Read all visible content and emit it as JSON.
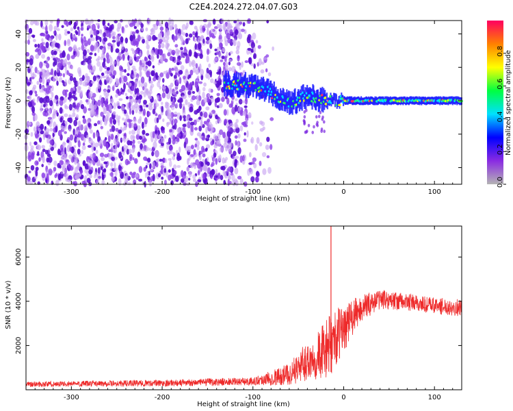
{
  "title": "C2E4.2024.272.04.07.G03",
  "colors": {
    "snr_line": "#ee2a2a",
    "spectro_point": "#6a1bd6",
    "colormap": [
      "#b4b4b4",
      "#8a2be2",
      "#0000ff",
      "#00e0ff",
      "#00ff40",
      "#ffff00",
      "#ff8000",
      "#ff0060"
    ]
  },
  "chart_data": [
    {
      "type": "heatmap",
      "xlabel": "Height of straight line (km)",
      "ylabel": "Frequency (Hz)",
      "xlim": [
        -350,
        130
      ],
      "ylim": [
        -50,
        48
      ],
      "xticks": [
        -300,
        -200,
        -100,
        0,
        100
      ],
      "yticks": [
        -40,
        -20,
        0,
        20,
        40
      ],
      "colorbar": {
        "label": "Normalized spectral amplitude",
        "range": [
          0,
          1
        ],
        "ticks": [
          "0.0",
          "0.2",
          "0.4",
          "0.6",
          "0.8"
        ],
        "tick_values": [
          0.0,
          0.2,
          0.4,
          0.6,
          0.8
        ]
      },
      "ridge": {
        "x": [
          -130,
          -100,
          -80,
          -60,
          -40,
          -20,
          0,
          50,
          100,
          130
        ],
        "frequency": [
          10,
          9,
          5,
          -2,
          3,
          0,
          0,
          0,
          0,
          0
        ]
      }
    },
    {
      "type": "line",
      "xlabel": "Height of straight line (km)",
      "ylabel": "SNR (10 * v/v)",
      "xlim": [
        -350,
        130
      ],
      "ylim": [
        0,
        7400
      ],
      "xticks": [
        -300,
        -200,
        -100,
        0,
        100
      ],
      "yticks": [
        2000,
        4000,
        6000
      ],
      "envelope": {
        "x": [
          -350,
          -200,
          -100,
          -60,
          -40,
          -20,
          -15,
          0,
          20,
          40,
          60,
          100,
          130
        ],
        "mean": [
          250,
          300,
          380,
          700,
          1300,
          1800,
          2000,
          2800,
          3700,
          4100,
          4000,
          3800,
          3700
        ],
        "spread": [
          120,
          150,
          180,
          500,
          900,
          1300,
          1400,
          1100,
          600,
          450,
          400,
          380,
          380
        ]
      },
      "spike": {
        "x": -14,
        "y": 7400
      }
    }
  ]
}
